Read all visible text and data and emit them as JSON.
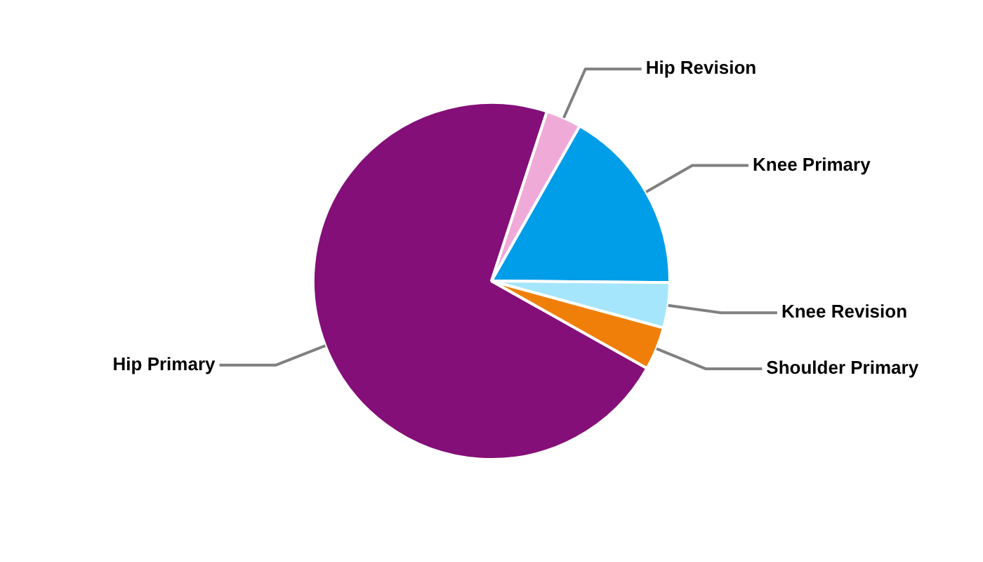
{
  "chart_data": {
    "type": "pie",
    "categories": [
      "Hip Primary",
      "Hip Revision",
      "Knee Primary",
      "Knee Revision",
      "Shoulder Primary"
    ],
    "values": [
      71.9,
      3.2,
      16.9,
      4.1,
      3.9
    ],
    "colors": [
      "#840f79",
      "#f0aad8",
      "#009de8",
      "#a5e6fc",
      "#f07f09"
    ]
  }
}
